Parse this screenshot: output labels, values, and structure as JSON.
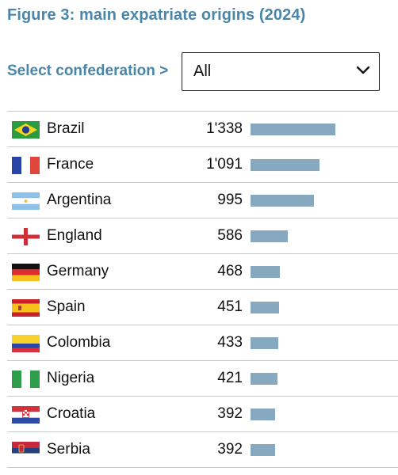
{
  "title": "Figure 3: main expatriate origins (2024)",
  "filter": {
    "label": "Select confederation >",
    "value": "All"
  },
  "colors": {
    "accent": "#4a86a8",
    "bar": "#86a9bf"
  },
  "chart_data": {
    "type": "bar",
    "orientation": "horizontal",
    "title": "Figure 3: main expatriate origins (2024)",
    "categories": [
      "Brazil",
      "France",
      "Argentina",
      "England",
      "Germany",
      "Spain",
      "Colombia",
      "Nigeria",
      "Croatia",
      "Serbia"
    ],
    "values": [
      1338,
      1091,
      995,
      586,
      468,
      451,
      433,
      421,
      392,
      392
    ],
    "value_labels": [
      "1'338",
      "1'091",
      "995",
      "586",
      "468",
      "451",
      "433",
      "421",
      "392",
      "392"
    ],
    "flag_icons": [
      "brazil-flag-icon",
      "france-flag-icon",
      "argentina-flag-icon",
      "england-flag-icon",
      "germany-flag-icon",
      "spain-flag-icon",
      "colombia-flag-icon",
      "nigeria-flag-icon",
      "croatia-flag-icon",
      "serbia-flag-icon"
    ],
    "xlim": [
      0,
      1338
    ],
    "grid": false,
    "legend": "none"
  }
}
